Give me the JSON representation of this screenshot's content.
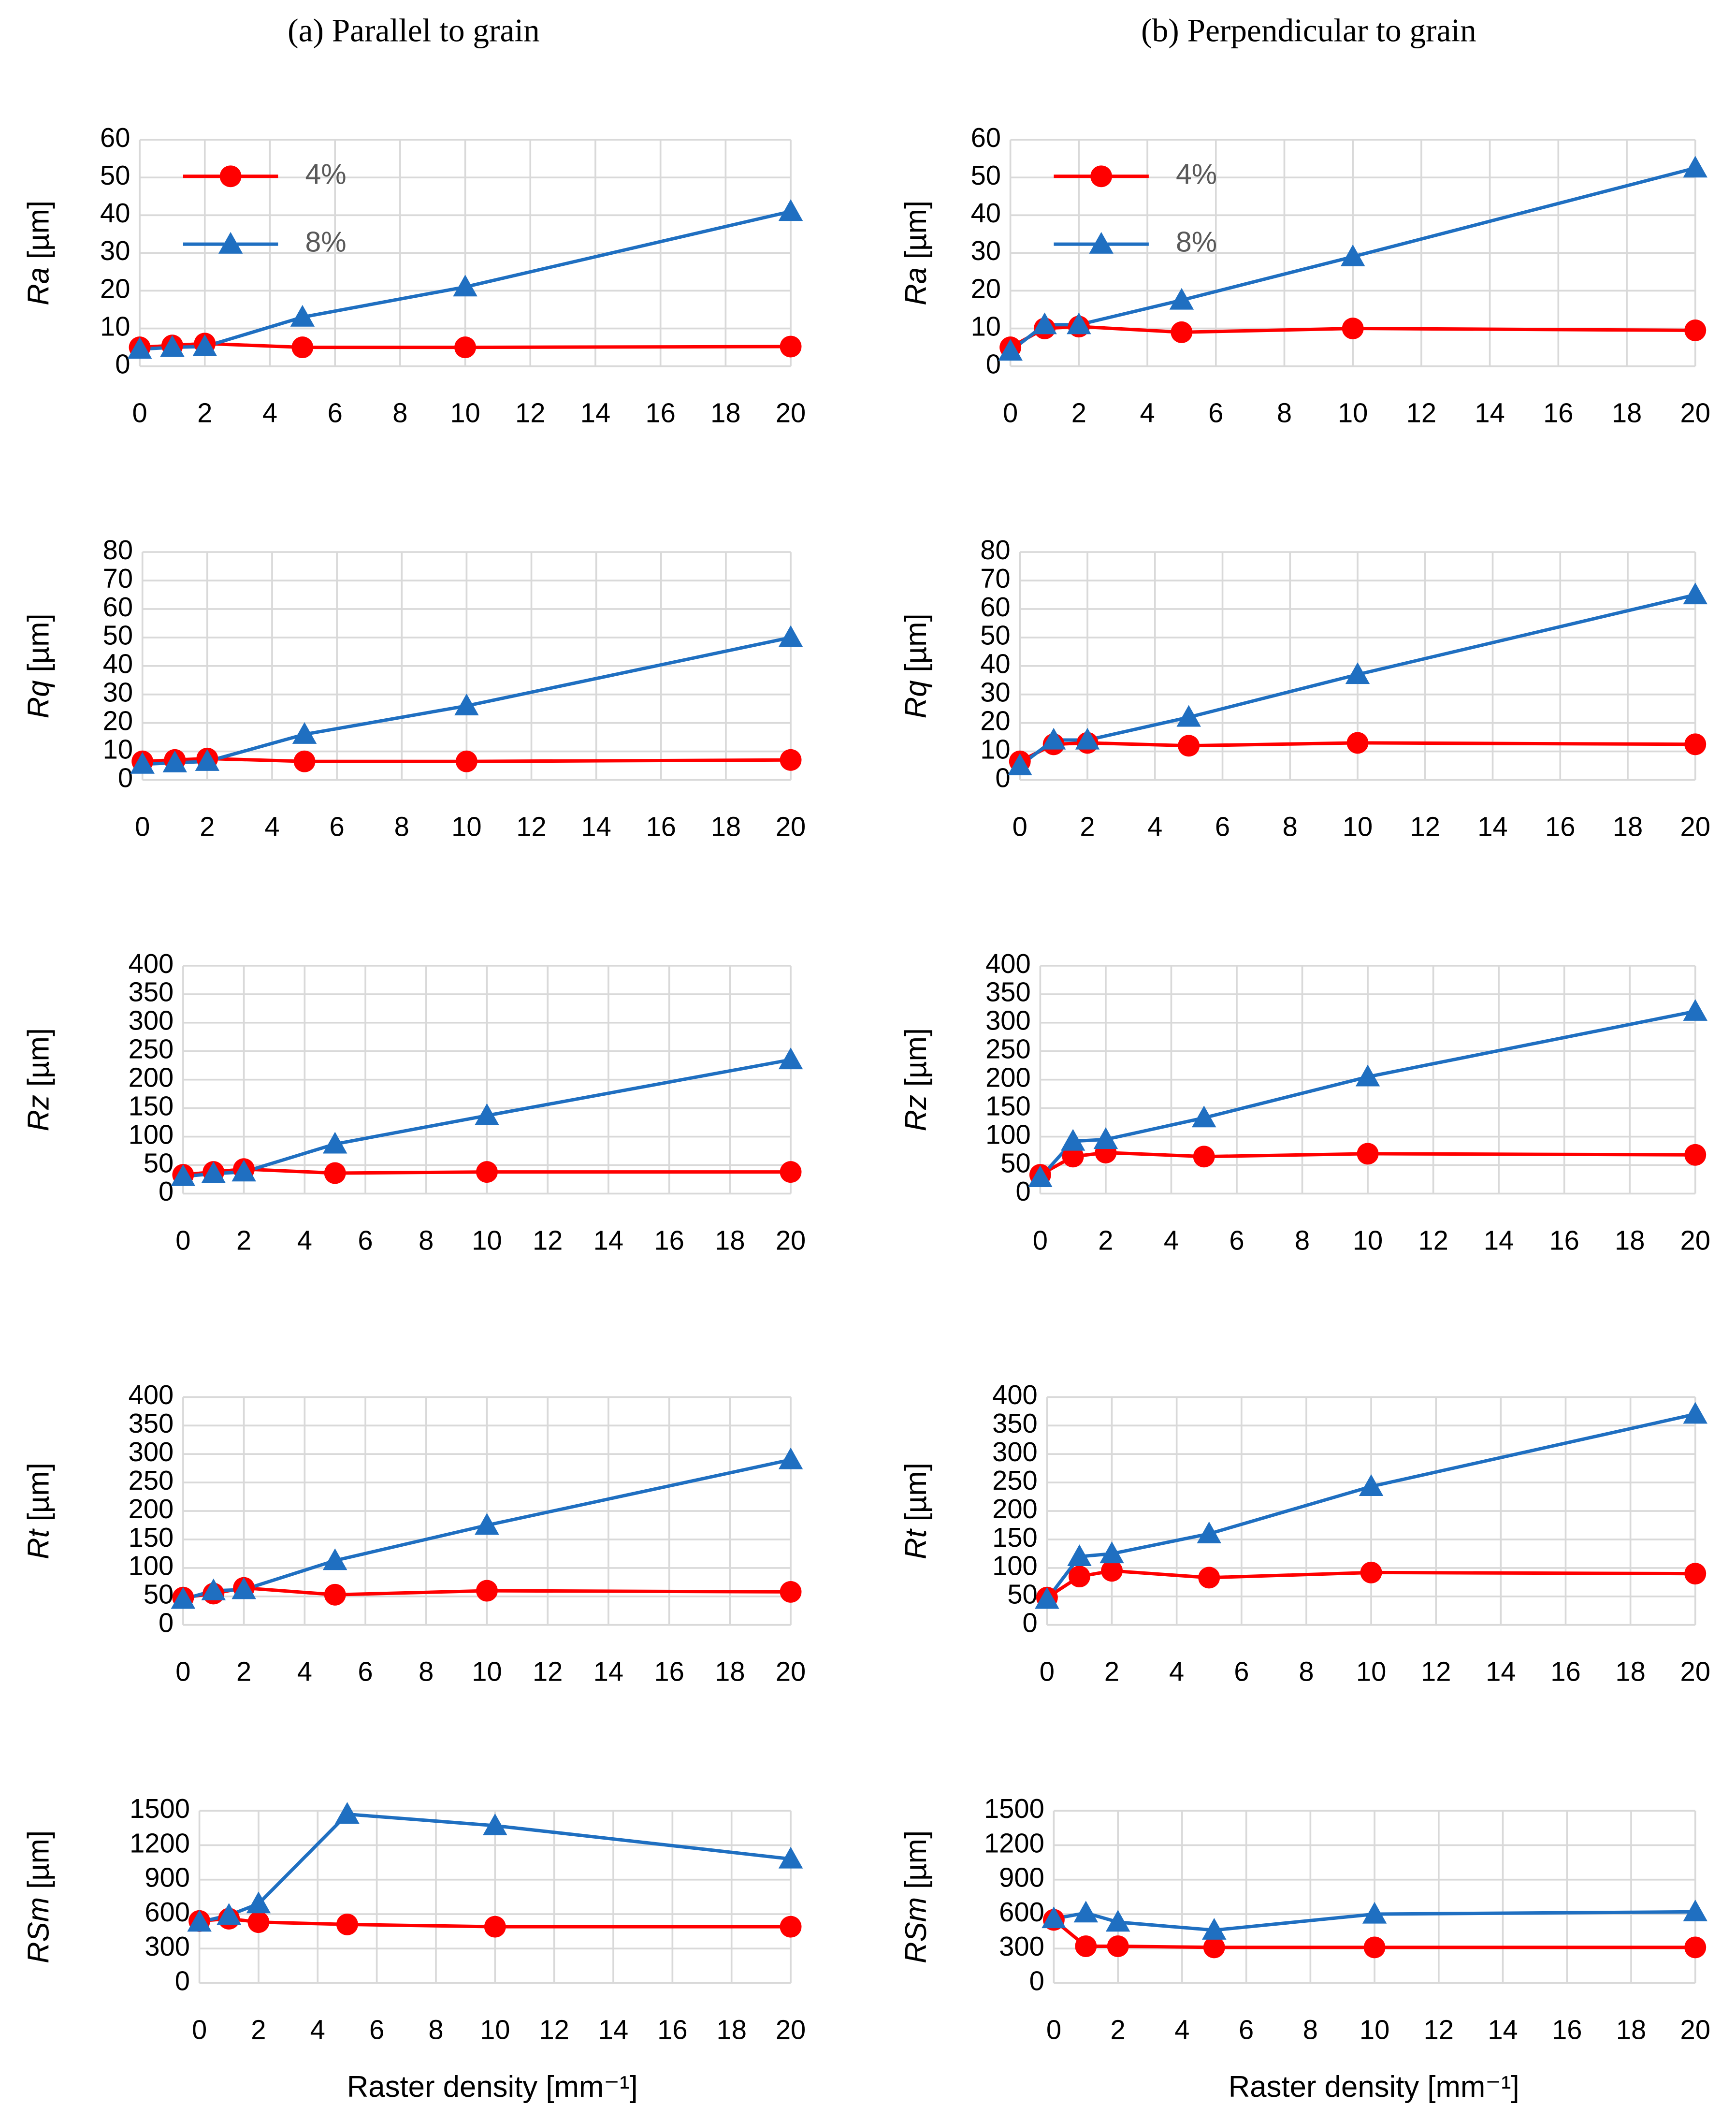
{
  "headings": [
    "(a) Parallel to grain",
    "(b) Perpendicular to grain"
  ],
  "chart_data": [
    {
      "type": "line",
      "column": 0,
      "ylabel": [
        "Ra",
        "[µm]"
      ],
      "x": [
        0,
        1,
        2,
        5,
        10,
        20
      ],
      "xlim": [
        0,
        20
      ],
      "xticks": [
        0,
        2,
        4,
        6,
        8,
        10,
        12,
        14,
        16,
        18,
        20
      ],
      "ylim": [
        0,
        60
      ],
      "yticks": [
        0,
        10,
        20,
        30,
        40,
        50,
        60
      ],
      "grid": true,
      "legend": "upper left",
      "series": [
        {
          "name": "4%",
          "color": "#ff0000",
          "marker": "circle",
          "values": [
            5,
            5.5,
            6,
            5,
            5,
            5.2
          ]
        },
        {
          "name": "8%",
          "color": "#1f6fc1",
          "marker": "triangle",
          "values": [
            4.5,
            5,
            5.2,
            13,
            21,
            41
          ]
        }
      ]
    },
    {
      "type": "line",
      "column": 0,
      "ylabel": [
        "Rq",
        "[µm]"
      ],
      "x": [
        0,
        1,
        2,
        5,
        10,
        20
      ],
      "xlim": [
        0,
        20
      ],
      "xticks": [
        0,
        2,
        4,
        6,
        8,
        10,
        12,
        14,
        16,
        18,
        20
      ],
      "ylim": [
        0,
        80
      ],
      "yticks": [
        0,
        10,
        20,
        30,
        40,
        50,
        60,
        70,
        80
      ],
      "grid": true,
      "series": [
        {
          "color": "#ff0000",
          "marker": "circle",
          "values": [
            6.5,
            7,
            7.5,
            6.5,
            6.5,
            7
          ]
        },
        {
          "color": "#1f6fc1",
          "marker": "triangle",
          "values": [
            5.5,
            6,
            6.5,
            16,
            26,
            50
          ]
        }
      ]
    },
    {
      "type": "line",
      "column": 0,
      "ylabel": [
        "Rz",
        "[µm]"
      ],
      "x": [
        0,
        1,
        2,
        5,
        10,
        20
      ],
      "xlim": [
        0,
        20
      ],
      "xticks": [
        0,
        2,
        4,
        6,
        8,
        10,
        12,
        14,
        16,
        18,
        20
      ],
      "ylim": [
        0,
        400
      ],
      "yticks": [
        0,
        50,
        100,
        150,
        200,
        250,
        300,
        350,
        400
      ],
      "grid": true,
      "series": [
        {
          "color": "#ff0000",
          "marker": "circle",
          "values": [
            33,
            38,
            43,
            36,
            38,
            38
          ]
        },
        {
          "color": "#1f6fc1",
          "marker": "triangle",
          "values": [
            30,
            35,
            38,
            87,
            137,
            235
          ]
        }
      ]
    },
    {
      "type": "line",
      "column": 0,
      "ylabel": [
        "Rt",
        "[µm]"
      ],
      "x": [
        0,
        1,
        2,
        5,
        10,
        20
      ],
      "xlim": [
        0,
        20
      ],
      "xticks": [
        0,
        2,
        4,
        6,
        8,
        10,
        12,
        14,
        16,
        18,
        20
      ],
      "ylim": [
        0,
        400
      ],
      "yticks": [
        0,
        50,
        100,
        150,
        200,
        250,
        300,
        350,
        400
      ],
      "grid": true,
      "series": [
        {
          "color": "#ff0000",
          "marker": "circle",
          "values": [
            48,
            55,
            65,
            53,
            60,
            58
          ]
        },
        {
          "color": "#1f6fc1",
          "marker": "triangle",
          "values": [
            45,
            60,
            62,
            113,
            175,
            290
          ]
        }
      ]
    },
    {
      "type": "line",
      "column": 0,
      "ylabel": [
        "RSm",
        "[µm]"
      ],
      "xlabel": "Raster density [mm⁻¹]",
      "x": [
        0,
        1,
        2,
        5,
        10,
        20
      ],
      "xlim": [
        0,
        20
      ],
      "xticks": [
        0,
        2,
        4,
        6,
        8,
        10,
        12,
        14,
        16,
        18,
        20
      ],
      "ylim": [
        0,
        1500
      ],
      "yticks": [
        0,
        300,
        600,
        900,
        1200,
        1500
      ],
      "grid": true,
      "series": [
        {
          "color": "#ff0000",
          "marker": "circle",
          "values": [
            540,
            560,
            530,
            510,
            490,
            490
          ]
        },
        {
          "color": "#1f6fc1",
          "marker": "triangle",
          "values": [
            530,
            590,
            690,
            1470,
            1370,
            1080
          ]
        }
      ]
    },
    {
      "type": "line",
      "column": 1,
      "ylabel": [
        "Ra",
        "[µm]"
      ],
      "x": [
        0,
        1,
        2,
        5,
        10,
        20
      ],
      "xlim": [
        0,
        20
      ],
      "xticks": [
        0,
        2,
        4,
        6,
        8,
        10,
        12,
        14,
        16,
        18,
        20
      ],
      "ylim": [
        0,
        60
      ],
      "yticks": [
        0,
        10,
        20,
        30,
        40,
        50,
        60
      ],
      "grid": true,
      "legend": "upper left",
      "series": [
        {
          "name": "4%",
          "color": "#ff0000",
          "marker": "circle",
          "values": [
            5,
            10,
            10.5,
            9,
            10,
            9.5
          ]
        },
        {
          "name": "8%",
          "color": "#1f6fc1",
          "marker": "triangle",
          "values": [
            4,
            11,
            11,
            17.5,
            29,
            52.5
          ]
        }
      ]
    },
    {
      "type": "line",
      "column": 1,
      "ylabel": [
        "Rq",
        "[µm]"
      ],
      "x": [
        0,
        1,
        2,
        5,
        10,
        20
      ],
      "xlim": [
        0,
        20
      ],
      "xticks": [
        0,
        2,
        4,
        6,
        8,
        10,
        12,
        14,
        16,
        18,
        20
      ],
      "ylim": [
        0,
        80
      ],
      "yticks": [
        0,
        10,
        20,
        30,
        40,
        50,
        60,
        70,
        80
      ],
      "grid": true,
      "series": [
        {
          "color": "#ff0000",
          "marker": "circle",
          "values": [
            6.5,
            12.5,
            13,
            12,
            13,
            12.5
          ]
        },
        {
          "color": "#1f6fc1",
          "marker": "triangle",
          "values": [
            5,
            14,
            14,
            22,
            37,
            65
          ]
        }
      ]
    },
    {
      "type": "line",
      "column": 1,
      "ylabel": [
        "Rz",
        "[µm]"
      ],
      "x": [
        0,
        1,
        2,
        5,
        10,
        20
      ],
      "xlim": [
        0,
        20
      ],
      "xticks": [
        0,
        2,
        4,
        6,
        8,
        10,
        12,
        14,
        16,
        18,
        20
      ],
      "ylim": [
        0,
        400
      ],
      "yticks": [
        0,
        50,
        100,
        150,
        200,
        250,
        300,
        350,
        400
      ],
      "grid": true,
      "series": [
        {
          "color": "#ff0000",
          "marker": "circle",
          "values": [
            33,
            65,
            72,
            65,
            70,
            68
          ]
        },
        {
          "color": "#1f6fc1",
          "marker": "triangle",
          "values": [
            28,
            92,
            95,
            133,
            205,
            320
          ]
        }
      ]
    },
    {
      "type": "line",
      "column": 1,
      "ylabel": [
        "Rt",
        "[µm]"
      ],
      "x": [
        0,
        1,
        2,
        5,
        10,
        20
      ],
      "xlim": [
        0,
        20
      ],
      "xticks": [
        0,
        2,
        4,
        6,
        8,
        10,
        12,
        14,
        16,
        18,
        20
      ],
      "ylim": [
        0,
        400
      ],
      "yticks": [
        0,
        50,
        100,
        150,
        200,
        250,
        300,
        350,
        400
      ],
      "grid": true,
      "series": [
        {
          "color": "#ff0000",
          "marker": "circle",
          "values": [
            48,
            85,
            95,
            83,
            92,
            90
          ]
        },
        {
          "color": "#1f6fc1",
          "marker": "triangle",
          "values": [
            45,
            120,
            125,
            160,
            243,
            370
          ]
        }
      ]
    },
    {
      "type": "line",
      "column": 1,
      "ylabel": [
        "RSm",
        "[µm]"
      ],
      "xlabel": "Raster density [mm⁻¹]",
      "x": [
        0,
        1,
        2,
        5,
        10,
        20
      ],
      "xlim": [
        0,
        20
      ],
      "xticks": [
        0,
        2,
        4,
        6,
        8,
        10,
        12,
        14,
        16,
        18,
        20
      ],
      "ylim": [
        0,
        1500
      ],
      "yticks": [
        0,
        300,
        600,
        900,
        1200,
        1500
      ],
      "grid": true,
      "series": [
        {
          "color": "#ff0000",
          "marker": "circle",
          "values": [
            550,
            320,
            320,
            310,
            310,
            310
          ]
        },
        {
          "color": "#1f6fc1",
          "marker": "triangle",
          "values": [
            560,
            610,
            530,
            460,
            600,
            620
          ]
        }
      ]
    }
  ]
}
